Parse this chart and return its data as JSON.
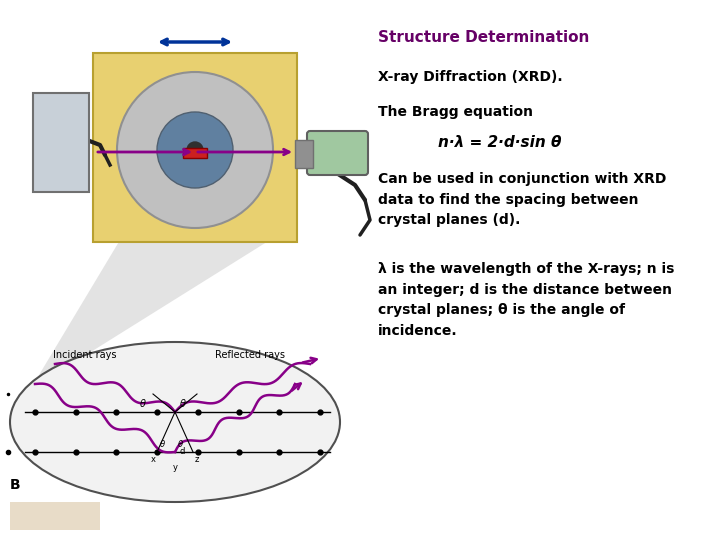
{
  "title": "Structure Determination",
  "title_color": "#660066",
  "title_fontsize": 11,
  "line1": "X-ray Diffraction (XRD).",
  "line2": "The Bragg equation",
  "equation": "n·λ = 2·d·sin θ",
  "line3": "Can be used in conjunction with XRD\ndata to find the spacing between\ncrystal planes (d).",
  "line4": "λ is the wavelength of the X-rays; n is\nan integer; d is the distance between\ncrystal planes; θ is the angle of\nincidence.",
  "text_color": "#000000",
  "bold_fontsize": 10,
  "eq_fontsize": 11,
  "bg_color": "#ffffff",
  "label_B": "B",
  "bottom_rect_color": "#e8dcc8",
  "purple": "#880088",
  "dark_arrow": "#003399",
  "machine_yellow": "#e8d070",
  "machine_edge": "#b8a030",
  "disc_gray": "#c0c0c0",
  "disc_blue": "#6080a0",
  "tube_green": "#a0c8a0",
  "detector_gray": "#c8d0d8",
  "cone_gray": "#c8c8c8"
}
